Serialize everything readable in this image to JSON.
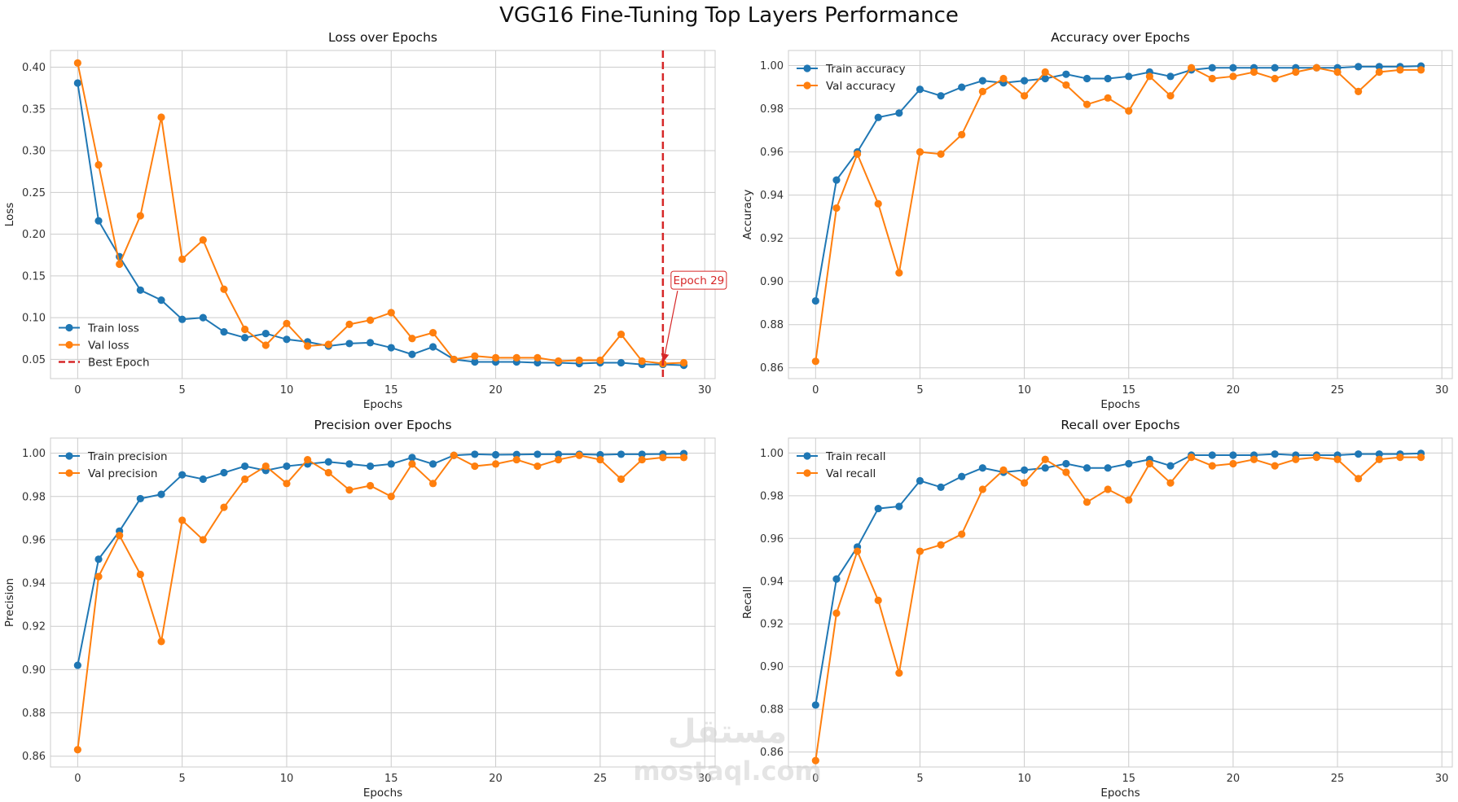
{
  "suptitle": "VGG16 Fine-Tuning Top Layers Performance",
  "watermark": {
    "script": "مستقل",
    "latin": "mostaql.com"
  },
  "colors": {
    "train": "#1f77b4",
    "val": "#ff7f0e",
    "best": "#d62728",
    "grid": "#cccccc"
  },
  "chart_data": [
    {
      "type": "line",
      "title": "Loss over Epochs",
      "xlabel": "Epochs",
      "ylabel": "Loss",
      "xlim": [
        -1.3,
        30.5
      ],
      "ylim": [
        0.027,
        0.42
      ],
      "xticks": [
        0,
        5,
        10,
        15,
        20,
        25,
        30
      ],
      "yticks": [
        0.05,
        0.1,
        0.15,
        0.2,
        0.25,
        0.3,
        0.35,
        0.4
      ],
      "ytick_labels": [
        "0.05",
        "0.10",
        "0.15",
        "0.20",
        "0.25",
        "0.30",
        "0.35",
        "0.40"
      ],
      "legend": "lower-left",
      "best_epoch": {
        "x": 28,
        "label": "Best Epoch",
        "annotation": "Epoch 29",
        "annotation_target_y": 0.045,
        "annotation_text_y": 0.14
      },
      "series": [
        {
          "name": "Train loss",
          "role": "train",
          "x": [
            0,
            1,
            2,
            3,
            4,
            5,
            6,
            7,
            8,
            9,
            10,
            11,
            12,
            13,
            14,
            15,
            16,
            17,
            18,
            19,
            20,
            21,
            22,
            23,
            24,
            25,
            26,
            27,
            28,
            29
          ],
          "values": [
            0.381,
            0.216,
            0.173,
            0.133,
            0.121,
            0.098,
            0.1,
            0.083,
            0.076,
            0.081,
            0.074,
            0.071,
            0.066,
            0.069,
            0.07,
            0.064,
            0.056,
            0.065,
            0.05,
            0.047,
            0.047,
            0.047,
            0.046,
            0.046,
            0.045,
            0.046,
            0.046,
            0.044,
            0.044,
            0.043
          ]
        },
        {
          "name": "Val loss",
          "role": "val",
          "x": [
            0,
            1,
            2,
            3,
            4,
            5,
            6,
            7,
            8,
            9,
            10,
            11,
            12,
            13,
            14,
            15,
            16,
            17,
            18,
            19,
            20,
            21,
            22,
            23,
            24,
            25,
            26,
            27,
            28,
            29
          ],
          "values": [
            0.405,
            0.283,
            0.164,
            0.222,
            0.34,
            0.17,
            0.193,
            0.134,
            0.086,
            0.067,
            0.093,
            0.066,
            0.068,
            0.092,
            0.097,
            0.106,
            0.075,
            0.082,
            0.05,
            0.054,
            0.052,
            0.052,
            0.052,
            0.048,
            0.049,
            0.049,
            0.08,
            0.048,
            0.045,
            0.046
          ]
        }
      ]
    },
    {
      "type": "line",
      "title": "Accuracy over Epochs",
      "xlabel": "Epochs",
      "ylabel": "Accuracy",
      "xlim": [
        -1.3,
        30.5
      ],
      "ylim": [
        0.855,
        1.007
      ],
      "xticks": [
        0,
        5,
        10,
        15,
        20,
        25,
        30
      ],
      "yticks": [
        0.86,
        0.88,
        0.9,
        0.92,
        0.94,
        0.96,
        0.98,
        1.0
      ],
      "ytick_labels": [
        "0.86",
        "0.88",
        "0.90",
        "0.92",
        "0.94",
        "0.96",
        "0.98",
        "1.00"
      ],
      "legend": "top-left",
      "series": [
        {
          "name": "Train accuracy",
          "role": "train",
          "x": [
            0,
            1,
            2,
            3,
            4,
            5,
            6,
            7,
            8,
            9,
            10,
            11,
            12,
            13,
            14,
            15,
            16,
            17,
            18,
            19,
            20,
            21,
            22,
            23,
            24,
            25,
            26,
            27,
            28,
            29
          ],
          "values": [
            0.891,
            0.947,
            0.96,
            0.976,
            0.978,
            0.989,
            0.986,
            0.99,
            0.993,
            0.992,
            0.993,
            0.994,
            0.996,
            0.994,
            0.994,
            0.995,
            0.997,
            0.995,
            0.998,
            0.999,
            0.999,
            0.999,
            0.999,
            0.999,
            0.999,
            0.999,
            0.9995,
            0.9995,
            0.9995,
            0.9998
          ]
        },
        {
          "name": "Val accuracy",
          "role": "val",
          "x": [
            0,
            1,
            2,
            3,
            4,
            5,
            6,
            7,
            8,
            9,
            10,
            11,
            12,
            13,
            14,
            15,
            16,
            17,
            18,
            19,
            20,
            21,
            22,
            23,
            24,
            25,
            26,
            27,
            28,
            29
          ],
          "values": [
            0.863,
            0.934,
            0.959,
            0.936,
            0.904,
            0.96,
            0.959,
            0.968,
            0.988,
            0.994,
            0.986,
            0.997,
            0.991,
            0.982,
            0.985,
            0.979,
            0.995,
            0.986,
            0.999,
            0.994,
            0.995,
            0.997,
            0.994,
            0.997,
            0.999,
            0.997,
            0.988,
            0.997,
            0.998,
            0.998
          ]
        }
      ]
    },
    {
      "type": "line",
      "title": "Precision over Epochs",
      "xlabel": "Epochs",
      "ylabel": "Precision",
      "xlim": [
        -1.3,
        30.5
      ],
      "ylim": [
        0.855,
        1.007
      ],
      "xticks": [
        0,
        5,
        10,
        15,
        20,
        25,
        30
      ],
      "yticks": [
        0.86,
        0.88,
        0.9,
        0.92,
        0.94,
        0.96,
        0.98,
        1.0
      ],
      "ytick_labels": [
        "0.86",
        "0.88",
        "0.90",
        "0.92",
        "0.94",
        "0.96",
        "0.98",
        "1.00"
      ],
      "legend": "top-left",
      "series": [
        {
          "name": "Train precision",
          "role": "train",
          "x": [
            0,
            1,
            2,
            3,
            4,
            5,
            6,
            7,
            8,
            9,
            10,
            11,
            12,
            13,
            14,
            15,
            16,
            17,
            18,
            19,
            20,
            21,
            22,
            23,
            24,
            25,
            26,
            27,
            28,
            29
          ],
          "values": [
            0.902,
            0.951,
            0.964,
            0.979,
            0.981,
            0.99,
            0.988,
            0.991,
            0.994,
            0.992,
            0.994,
            0.995,
            0.996,
            0.995,
            0.994,
            0.995,
            0.998,
            0.995,
            0.999,
            0.9995,
            0.9993,
            0.9994,
            0.9995,
            0.9995,
            0.9995,
            0.9993,
            0.9995,
            0.9995,
            0.9996,
            0.9998
          ]
        },
        {
          "name": "Val precision",
          "role": "val",
          "x": [
            0,
            1,
            2,
            3,
            4,
            5,
            6,
            7,
            8,
            9,
            10,
            11,
            12,
            13,
            14,
            15,
            16,
            17,
            18,
            19,
            20,
            21,
            22,
            23,
            24,
            25,
            26,
            27,
            28,
            29
          ],
          "values": [
            0.863,
            0.943,
            0.962,
            0.944,
            0.913,
            0.969,
            0.96,
            0.975,
            0.988,
            0.994,
            0.986,
            0.997,
            0.991,
            0.983,
            0.985,
            0.98,
            0.995,
            0.986,
            0.999,
            0.994,
            0.995,
            0.997,
            0.994,
            0.997,
            0.999,
            0.997,
            0.988,
            0.997,
            0.998,
            0.998
          ]
        }
      ]
    },
    {
      "type": "line",
      "title": "Recall over Epochs",
      "xlabel": "Epochs",
      "ylabel": "Recall",
      "xlim": [
        -1.3,
        30.5
      ],
      "ylim": [
        0.853,
        1.007
      ],
      "xticks": [
        0,
        5,
        10,
        15,
        20,
        25,
        30
      ],
      "yticks": [
        0.86,
        0.88,
        0.9,
        0.92,
        0.94,
        0.96,
        0.98,
        1.0
      ],
      "ytick_labels": [
        "0.86",
        "0.88",
        "0.90",
        "0.92",
        "0.94",
        "0.96",
        "0.98",
        "1.00"
      ],
      "legend": "top-left",
      "series": [
        {
          "name": "Train recall",
          "role": "train",
          "x": [
            0,
            1,
            2,
            3,
            4,
            5,
            6,
            7,
            8,
            9,
            10,
            11,
            12,
            13,
            14,
            15,
            16,
            17,
            18,
            19,
            20,
            21,
            22,
            23,
            24,
            25,
            26,
            27,
            28,
            29
          ],
          "values": [
            0.882,
            0.941,
            0.956,
            0.974,
            0.975,
            0.987,
            0.984,
            0.989,
            0.993,
            0.991,
            0.992,
            0.993,
            0.995,
            0.993,
            0.993,
            0.995,
            0.997,
            0.994,
            0.999,
            0.999,
            0.999,
            0.999,
            0.9995,
            0.999,
            0.999,
            0.999,
            0.9995,
            0.9995,
            0.9995,
            0.9998
          ]
        },
        {
          "name": "Val recall",
          "role": "val",
          "x": [
            0,
            1,
            2,
            3,
            4,
            5,
            6,
            7,
            8,
            9,
            10,
            11,
            12,
            13,
            14,
            15,
            16,
            17,
            18,
            19,
            20,
            21,
            22,
            23,
            24,
            25,
            26,
            27,
            28,
            29
          ],
          "values": [
            0.856,
            0.925,
            0.954,
            0.931,
            0.897,
            0.954,
            0.957,
            0.962,
            0.983,
            0.992,
            0.986,
            0.997,
            0.991,
            0.977,
            0.983,
            0.978,
            0.995,
            0.986,
            0.998,
            0.994,
            0.995,
            0.997,
            0.994,
            0.997,
            0.998,
            0.997,
            0.988,
            0.997,
            0.998,
            0.998
          ]
        }
      ]
    }
  ]
}
